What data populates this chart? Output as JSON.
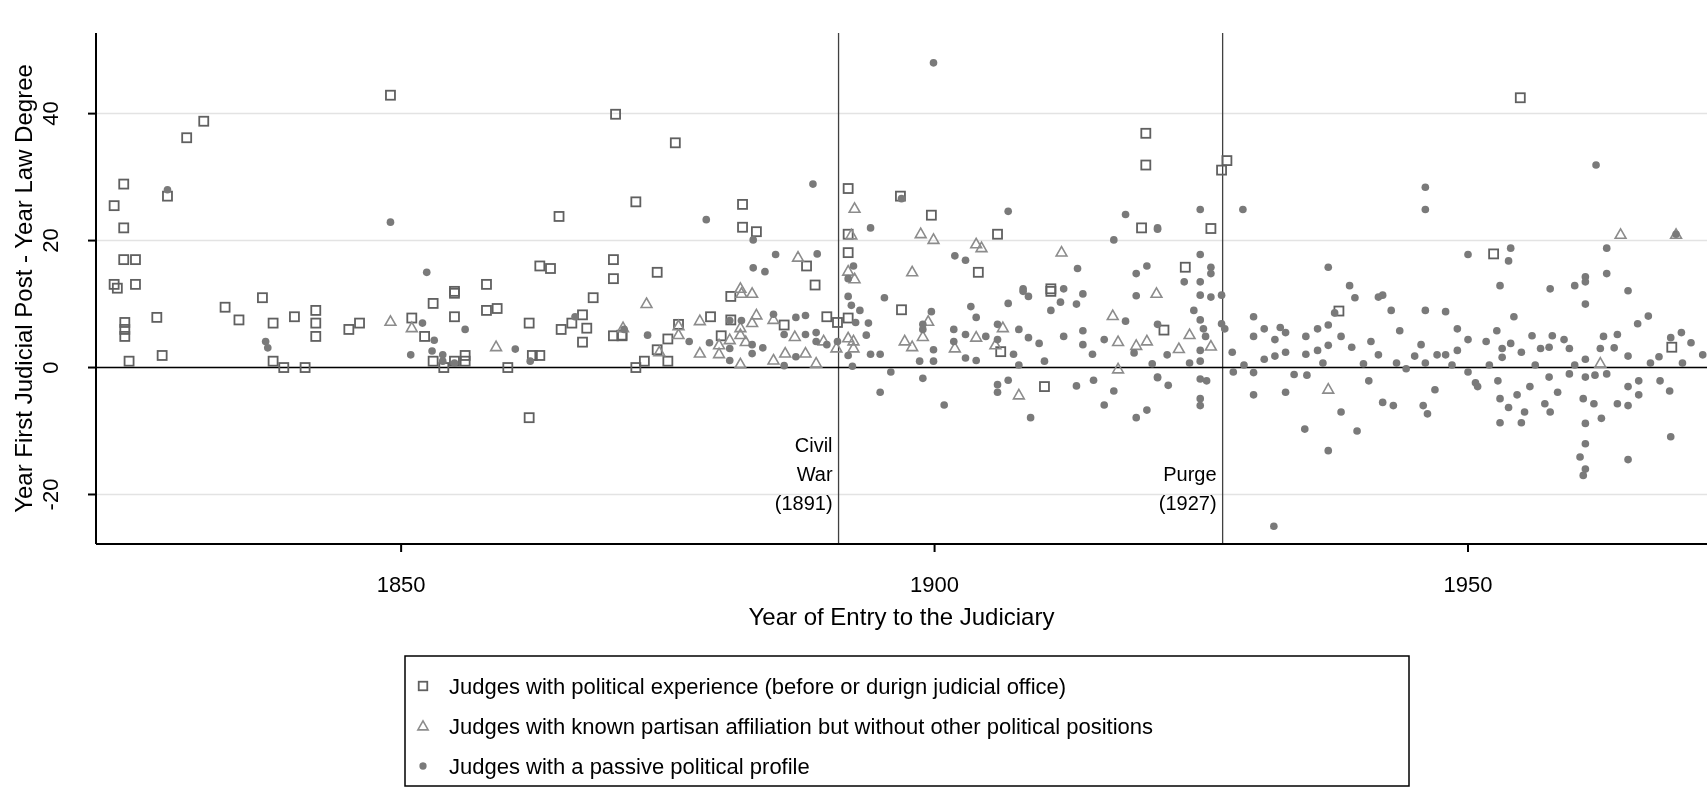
{
  "chart_data": {
    "type": "scatter",
    "xlabel": "Year of Entry to the Judiciary",
    "ylabel": "Year First Judicial Post  -  Year Law Degree",
    "xlim": [
      1821.4,
      1972.4
    ],
    "ylim": [
      -27.8,
      52.7
    ],
    "xticks": [
      1850,
      1900,
      1950
    ],
    "yticks": [
      -20,
      0,
      20,
      40
    ],
    "grid": "y",
    "legend": "bottom",
    "ref_lines": [
      {
        "axis": "x",
        "value": 1891,
        "label": "Civil\nWar\n(1891)",
        "color": "#404040"
      },
      {
        "axis": "x",
        "value": 1927,
        "label": "Purge\n(1927)",
        "color": "#404040"
      },
      {
        "axis": "y",
        "value": 0,
        "color": "#000000"
      }
    ],
    "series": [
      {
        "name": "Judges with political experience (before or durign judicial office)",
        "color": "#606060",
        "marker": "square",
        "x": [
          1823.1,
          1824,
          1824,
          1824,
          1825.1,
          1823.1,
          1823.4,
          1825.1,
          1828.1,
          1829.9,
          1831.5,
          1849,
          1855,
          1858,
          1863,
          1864,
          1864.8,
          1870.1,
          1869.9,
          1869.9,
          1824.1,
          1824.1,
          1824.1,
          1824.5,
          1827.1,
          1827.6,
          1833.5,
          1834.8,
          1837,
          1838,
          1838,
          1839,
          1841,
          1840,
          1842,
          1842,
          1842,
          1845.1,
          1846.1,
          1851,
          1852.2,
          1853,
          1853,
          1854,
          1855,
          1855,
          1855,
          1856,
          1856,
          1858,
          1859,
          1860,
          1862,
          1862,
          1862.3,
          1863,
          1865,
          1866,
          1867,
          1867,
          1867.4,
          1868,
          1869.9,
          1870.7,
          1875.7,
          1872,
          1874,
          1882,
          1882,
          1883.3,
          1888,
          1888.8,
          1891.9,
          1891.9,
          1891.9,
          1896.8,
          1899.7,
          1904.1,
          1905.9,
          1910.9,
          1919.4,
          1919.8,
          1919.8,
          1872,
          1872.8,
          1874,
          1875,
          1875,
          1876,
          1879,
          1880,
          1880.9,
          1880.9,
          1885.9,
          1889.9,
          1890.9,
          1891.9,
          1896.9,
          1906.2,
          1910.3,
          1910.9,
          1870.7,
          1927.4,
          1926.9,
          1925.9,
          1923.5,
          1954.9,
          1952.4,
          1921.5,
          1937.9,
          1969.1
        ],
        "values": [
          25.5,
          28.9,
          22,
          17,
          17,
          13.1,
          12.5,
          13.1,
          27,
          36.2,
          38.8,
          42.9,
          12,
          13.1,
          16,
          15.6,
          23.8,
          39.9,
          17,
          14,
          7.1,
          6,
          4.9,
          1,
          7.9,
          1.9,
          9.5,
          7.5,
          11,
          7,
          1,
          0,
          0,
          8,
          9,
          7,
          4.9,
          6,
          7,
          7.8,
          4.9,
          10.1,
          1,
          0,
          11.7,
          8,
          1,
          1.9,
          1,
          9,
          9.3,
          0,
          7,
          -7.9,
          1.9,
          1.9,
          6,
          7,
          8.3,
          4,
          6.2,
          11,
          5,
          5,
          35.4,
          26.1,
          15,
          25.7,
          22.1,
          21.4,
          16,
          13,
          28.2,
          21,
          18.1,
          27,
          24,
          15,
          21,
          12.4,
          22,
          36.9,
          31.9,
          0,
          1,
          2.8,
          1,
          4.5,
          6.8,
          8,
          5,
          11.2,
          7.5,
          6.7,
          8,
          7.1,
          7.8,
          9.1,
          2.5,
          -3,
          12,
          5.1,
          32.6,
          31.1,
          21.9,
          15.8,
          42.5,
          17.9,
          5.9,
          8.9,
          3.2
        ]
      },
      {
        "name": "Judges with known partisan affiliation but without other political positions",
        "color": "#8c8c8c",
        "marker": "triangle",
        "x": [
          1849,
          1851,
          1858.9,
          1870.8,
          1887.2,
          1892.5,
          1892.2,
          1891.9,
          1892.5,
          1898.7,
          1899.9,
          1897.9,
          1903.9,
          1904.4,
          1911.9,
          1881.8,
          1873,
          1874.2,
          1876,
          1876,
          1878,
          1878,
          1879.8,
          1879.8,
          1880.8,
          1881.9,
          1882.9,
          1883.3,
          1882.9,
          1881.8,
          1881.8,
          1882.3,
          1881.8,
          1884.9,
          1884.9,
          1886,
          1886.9,
          1887.9,
          1888.9,
          1889.6,
          1890.8,
          1891.9,
          1892.4,
          1892.4,
          1899.4,
          1898.9,
          1897.2,
          1897.9,
          1901.9,
          1903.9,
          1906.4,
          1905.7,
          1907.9,
          1916.7,
          1917.2,
          1917.2,
          1918.9,
          1919.9,
          1920.8,
          1923.9,
          1922.9,
          1925.9,
          1936.9,
          1962.4,
          1964.3,
          1969.5
        ],
        "values": [
          7.3,
          6.3,
          3.3,
          6.3,
          17.4,
          25.1,
          20.9,
          15.2,
          14,
          21.1,
          20.2,
          15.1,
          19.5,
          18.9,
          18.2,
          12.5,
          10.1,
          2.5,
          6.6,
          5.2,
          7.4,
          2.3,
          2.2,
          3.6,
          4.4,
          11.7,
          11.7,
          8.3,
          7.1,
          6.3,
          5.2,
          4.1,
          0.6,
          7.6,
          1.2,
          2.3,
          4.9,
          2.3,
          0.7,
          4.2,
          3.1,
          4.7,
          4.2,
          3.1,
          7.3,
          4.9,
          4.2,
          3.3,
          3.1,
          4.8,
          6.3,
          3.6,
          -4.3,
          8.2,
          4.1,
          -0.2,
          3.5,
          4.2,
          11.7,
          5.2,
          3,
          3.4,
          -3.4,
          0.7,
          21,
          21
        ]
      },
      {
        "name": "Judges with a passive political profile",
        "color": "#7a7a7a",
        "marker": "circle",
        "x": [
          1828.1,
          1849,
          1852.4,
          1837.3,
          1837.5,
          1852,
          1853.1,
          1850.9,
          1852.9,
          1853.9,
          1853.9,
          1855,
          1856,
          1860.7,
          1862.1,
          1866.3,
          1870.9,
          1888.6,
          1878.6,
          1883,
          1885.1,
          1889,
          1883,
          1884.1,
          1894,
          1896.9,
          1899.9,
          1901.9,
          1902.9,
          1906.9,
          1917.9,
          1916.8,
          1913.4,
          1918.9,
          1919.9,
          1920.9,
          1892.4,
          1891.9,
          1908.3,
          1912.1,
          1873.1,
          1877,
          1878.9,
          1880.8,
          1880.8,
          1880.8,
          1881.9,
          1882.9,
          1882.9,
          1883.9,
          1884.9,
          1885.9,
          1885.9,
          1887,
          1887.9,
          1887,
          1887.9,
          1888.9,
          1888.9,
          1889.9,
          1890.9,
          1891.9,
          1892.2,
          1893,
          1892.6,
          1891.9,
          1892.3,
          1893.8,
          1893.6,
          1894,
          1894.9,
          1895.3,
          1895.9,
          1894.9,
          1898.9,
          1898.9,
          1898.9,
          1899.7,
          1899.9,
          1899.9,
          1898.6,
          1900.9,
          1901.8,
          1901.8,
          1902.9,
          1902.9,
          1903.4,
          1903.9,
          1903.9,
          1904.8,
          1905.9,
          1905.9,
          1905.9,
          1905.9,
          1906.9,
          1906.9,
          1907.4,
          1907.9,
          1907.9,
          1908.3,
          1908.8,
          1908.8,
          1909,
          1909.8,
          1910.3,
          1910.9,
          1911.8,
          1912.1,
          1913.3,
          1913.3,
          1913.9,
          1913.9,
          1913.9,
          1914.9,
          1914.8,
          1915.9,
          1915.9,
          1916.8,
          1917.9,
          1918.9,
          1918.9,
          1919.9,
          1918.7,
          1920.4,
          1920.9,
          1920.9,
          1920.9,
          1924.9,
          1928.9,
          1924.9,
          1925.9,
          1925.9,
          1923.4,
          1924.9,
          1936.9,
          1938.9,
          1946,
          1946,
          1950,
          1953.8,
          1954,
          1953,
          1957.7,
          1960,
          1961,
          1961,
          1962,
          1963,
          1963,
          1965,
          1969.5,
          1920.9,
          1921.9,
          1921.8,
          1924.3,
          1924.9,
          1925.9,
          1926.9,
          1924.9,
          1925.2,
          1925.4,
          1924.9,
          1924.9,
          1924.9,
          1925.5,
          1924.9,
          1924.9,
          1923.9,
          1926.9,
          1927.2,
          1927.9,
          1928,
          1929,
          1929.9,
          1929.9,
          1929.9,
          1929.9,
          1930.9,
          1930.9,
          1931.9,
          1931.9,
          1932.4,
          1932.9,
          1932.9,
          1932.9,
          1933.7,
          1934.8,
          1934.8,
          1934.9,
          1934.7,
          1931.8,
          1935.9,
          1935.9,
          1936.4,
          1936.9,
          1936.9,
          1936.9,
          1937.5,
          1938.1,
          1938.1,
          1939.1,
          1939.4,
          1939.6,
          1940.2,
          1940.7,
          1940.9,
          1941.6,
          1942,
          1941.6,
          1942,
          1943,
          1942.8,
          1943.6,
          1943.3,
          1944.2,
          1945,
          1945.6,
          1945.8,
          1946.2,
          1946,
          1946,
          1946.9,
          1947.1,
          1947.9,
          1947.9,
          1948.5,
          1949,
          1949,
          1950,
          1950,
          1950.7,
          1950.9,
          1951.7,
          1952,
          1952.7,
          1952.8,
          1953,
          1953,
          1953.2,
          1953.2,
          1954,
          1953.8,
          1954.3,
          1954.6,
          1955,
          1955.3,
          1955,
          1955.8,
          1956,
          1956.3,
          1956.8,
          1957.2,
          1957.7,
          1957.6,
          1957.6,
          1957.9,
          1958.4,
          1959,
          1959.5,
          1959.5,
          1960,
          1961,
          1961,
          1961,
          1960.8,
          1961,
          1961,
          1960.5,
          1961,
          1960.8,
          1961.9,
          1961.8,
          1962.4,
          1962.5,
          1962.7,
          1963,
          1963.7,
          1964,
          1964,
          1965,
          1965,
          1965,
          1965,
          1965.9,
          1966,
          1966,
          1966.9,
          1967.1,
          1967.9,
          1968,
          1969,
          1968.9,
          1969,
          1970,
          1970.1,
          1970.9,
          1972
        ],
        "values": [
          28,
          22.9,
          15,
          4.1,
          3.1,
          7,
          4.3,
          2,
          2.6,
          2,
          1,
          0.7,
          6,
          2.9,
          1,
          8,
          6,
          28.9,
          23.3,
          20.1,
          17.8,
          17.9,
          15.7,
          15.1,
          22,
          26.6,
          48,
          17.6,
          16.9,
          24.6,
          24.1,
          20.1,
          15.6,
          14.8,
          16,
          22,
          16,
          14,
          12.4,
          12.4,
          5.1,
          4.1,
          3.9,
          7.4,
          3,
          1.1,
          7.4,
          3.6,
          2.2,
          3.1,
          8.4,
          5.2,
          0.3,
          7.9,
          8.2,
          1.7,
          5.2,
          5.5,
          4.1,
          3.6,
          4.1,
          11.2,
          9.8,
          9,
          7.1,
          1.9,
          0.2,
          7,
          5.1,
          2.1,
          2.1,
          11,
          -0.7,
          -3.9,
          6.8,
          6,
          -1.7,
          8.8,
          2.8,
          1,
          1,
          -5.9,
          6,
          4.1,
          5.2,
          1.5,
          9.6,
          7.9,
          1.1,
          4.9,
          6.8,
          4.4,
          -2.7,
          -3.9,
          10.1,
          -2,
          2.1,
          6,
          0.4,
          12,
          11.2,
          4.7,
          -7.9,
          3.8,
          1,
          9,
          10.3,
          4.9,
          -2.9,
          10,
          5.8,
          3.6,
          11.6,
          -2,
          2.1,
          4.4,
          -5.9,
          -3.7,
          7.3,
          11.3,
          -7.9,
          -6.7,
          2.3,
          0.6,
          -1.6,
          6.8,
          21.8,
          24.9,
          24.9,
          17.8,
          15.8,
          14.8,
          13.5,
          13.5,
          15.8,
          12.9,
          28.4,
          24.9,
          17.8,
          16.8,
          18.8,
          12.9,
          12.4,
          12.9,
          14.3,
          13.5,
          31.9,
          18.8,
          14.8,
          12.1,
          21,
          -1.5,
          -2.8,
          2,
          9,
          11.4,
          11.1,
          11.4,
          7.5,
          6.1,
          4.9,
          2.7,
          1,
          -1.8,
          -2.1,
          -4.9,
          -6,
          0.7,
          6.9,
          6.1,
          2.4,
          -0.7,
          0.4,
          8,
          4.9,
          -0.8,
          -4.3,
          6.1,
          1.3,
          1.8,
          4.4,
          6.3,
          5.5,
          -3.9,
          2.4,
          -1.1,
          4.9,
          2.1,
          -1.2,
          -9.7,
          -25,
          6.1,
          2.7,
          0.7,
          6.7,
          3.5,
          -13.1,
          8.6,
          4.9,
          -7,
          3.2,
          11,
          -10,
          0.6,
          -2.1,
          4.1,
          11.1,
          11.4,
          2,
          -5.5,
          -6,
          9,
          5.8,
          0.7,
          -0.2,
          1.8,
          3.6,
          -6,
          -7.3,
          9,
          0.7,
          -3.5,
          2,
          8.8,
          2,
          0.4,
          6.1,
          2.7,
          4.4,
          -0.7,
          -2.4,
          -3,
          4.1,
          0.4,
          5.8,
          -2.1,
          -4.9,
          -8.7,
          3,
          1.6,
          3.8,
          -6.3,
          8,
          -4.3,
          -8.7,
          -7,
          2.4,
          -3,
          5,
          0.4,
          3,
          -5.7,
          -7,
          3.2,
          -1.5,
          5,
          -3.9,
          4.4,
          3,
          -1,
          0.4,
          10,
          1.3,
          -1.5,
          -4.9,
          -8.8,
          -12,
          -14.1,
          -16,
          -17,
          -1.2,
          -5.7,
          3,
          -8,
          4.9,
          -1,
          3.1,
          5.2,
          -5.7,
          1.8,
          -3,
          -14.5,
          -6,
          6.9,
          -2.1,
          -4.3,
          8.1,
          0.7,
          1.7,
          -2.1,
          4.7,
          -3.7,
          -10.9,
          5.5,
          0.7,
          3.9,
          2
        ]
      }
    ]
  }
}
